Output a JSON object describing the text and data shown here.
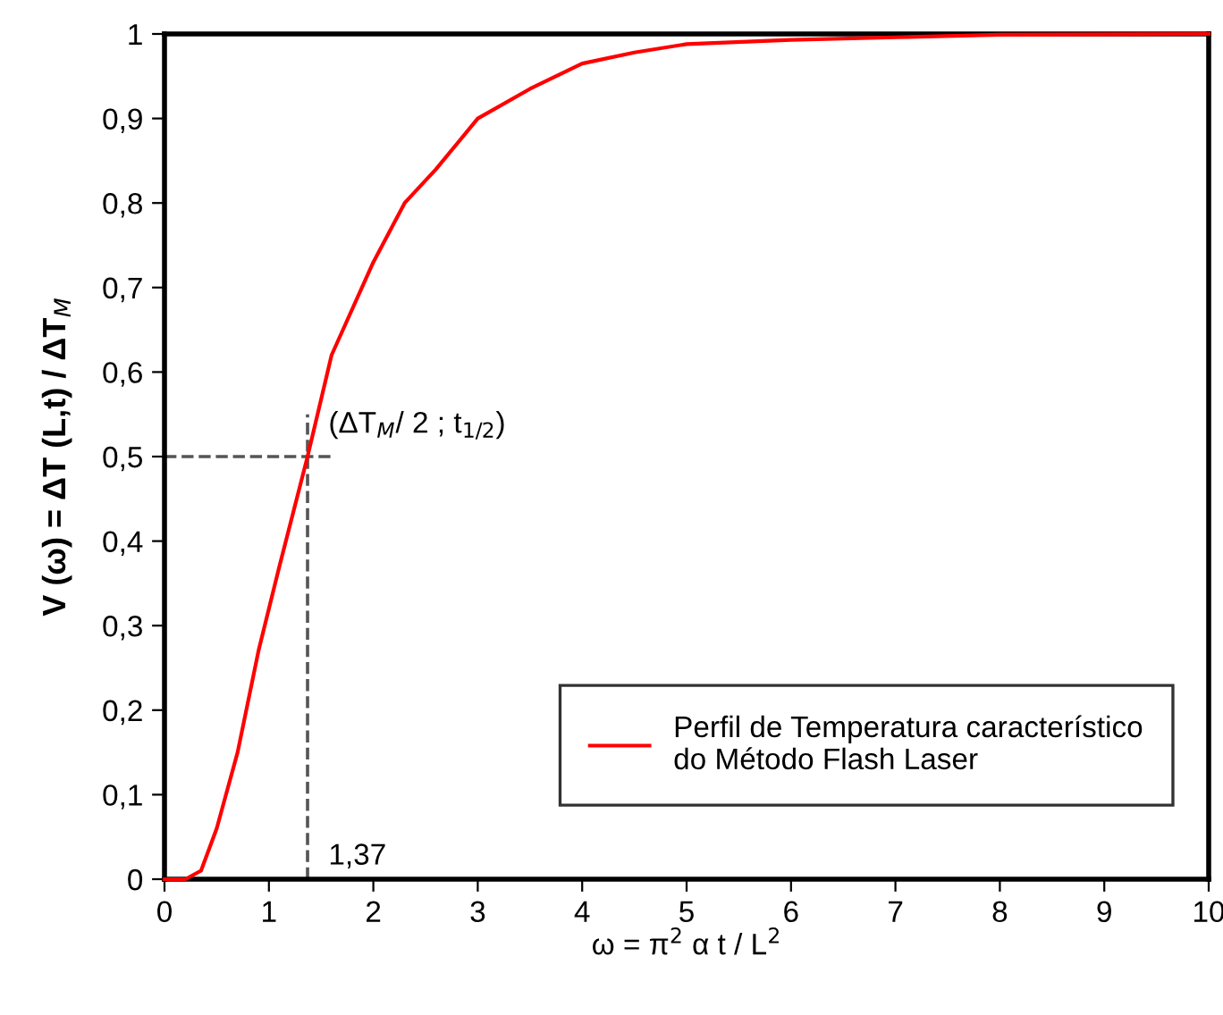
{
  "chart_data": {
    "type": "line",
    "xlabel": "ω = π$^{2}$ α t / L$^{2}$",
    "ylabel": "V (ω) = ΔT (L,t) / ΔT$_{M}$",
    "x": [
      0,
      0.2,
      0.35,
      0.5,
      0.7,
      0.9,
      1.1,
      1.37,
      1.6,
      2,
      2.3,
      2.6,
      3,
      3.5,
      4,
      4.5,
      5,
      6,
      7,
      8,
      10
    ],
    "series": [
      {
        "name": "Perfil de Temperatura característico\ndo Método Flash Laser",
        "color": "#ff0000",
        "values": [
          0,
          0,
          0.01,
          0.06,
          0.15,
          0.27,
          0.37,
          0.5,
          0.62,
          0.73,
          0.8,
          0.84,
          0.9,
          0.935,
          0.965,
          0.978,
          0.988,
          0.993,
          0.996,
          0.999,
          1.0
        ]
      }
    ],
    "xlim": [
      0,
      10
    ],
    "xticks": [
      0,
      1,
      2,
      3,
      4,
      5,
      6,
      7,
      8,
      9,
      10
    ],
    "ylim": [
      0,
      1
    ],
    "yticks": [
      0,
      {
        "value": 0.1,
        "label": "0,1"
      },
      {
        "value": 0.2,
        "label": "0,2"
      },
      {
        "value": 0.3,
        "label": "0,3"
      },
      {
        "value": 0.4,
        "label": "0,4"
      },
      {
        "value": 0.5,
        "label": "0,5"
      },
      {
        "value": 0.6,
        "label": "0,6"
      },
      {
        "value": 0.7,
        "label": "0,7"
      },
      {
        "value": 0.8,
        "label": "0,8"
      },
      {
        "value": 0.9,
        "label": "0,9"
      },
      1
    ],
    "ref_lines": [
      {
        "axis": "x",
        "value": 1.37,
        "label": "1,37",
        "color": "#555555",
        "line_style": "dashed"
      },
      {
        "axis": "y",
        "value": 0.5,
        "color": "#555555",
        "line_style": "dashed"
      }
    ],
    "annotations": [
      {
        "text": "(ΔT$_{M}$/ 2 ; t$_{1/2}$)",
        "x": 1.37,
        "y": 0.5
      }
    ],
    "legend": "bottom right",
    "grid": false,
    "marker": "none",
    "line_style": "solid"
  }
}
